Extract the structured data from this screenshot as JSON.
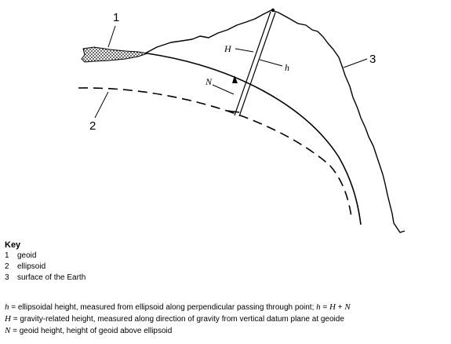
{
  "figure": {
    "callouts": [
      "1",
      "2",
      "3"
    ],
    "heights": {
      "H": "H",
      "h": "h",
      "N": "N"
    }
  },
  "key": {
    "title": "Key",
    "items": [
      {
        "num": "1",
        "label": "geoid"
      },
      {
        "num": "2",
        "label": "ellipsoid"
      },
      {
        "num": "3",
        "label": "surface of the Earth"
      }
    ]
  },
  "definitions": [
    {
      "var": "h",
      "text": " = ellipsoidal height, measured from ellipsoid along perpendicular passing through point; ",
      "extra_var": "h",
      "extra_text": " = ",
      "extra_var2": "H",
      "extra_text2": " + ",
      "extra_var3": "N"
    },
    {
      "var": "H",
      "text": " = gravity-related height, measured along direction of gravity from vertical datum plane at geoide"
    },
    {
      "var": "N",
      "text": " = geoid height, height of geoid above ellipsoid"
    }
  ]
}
